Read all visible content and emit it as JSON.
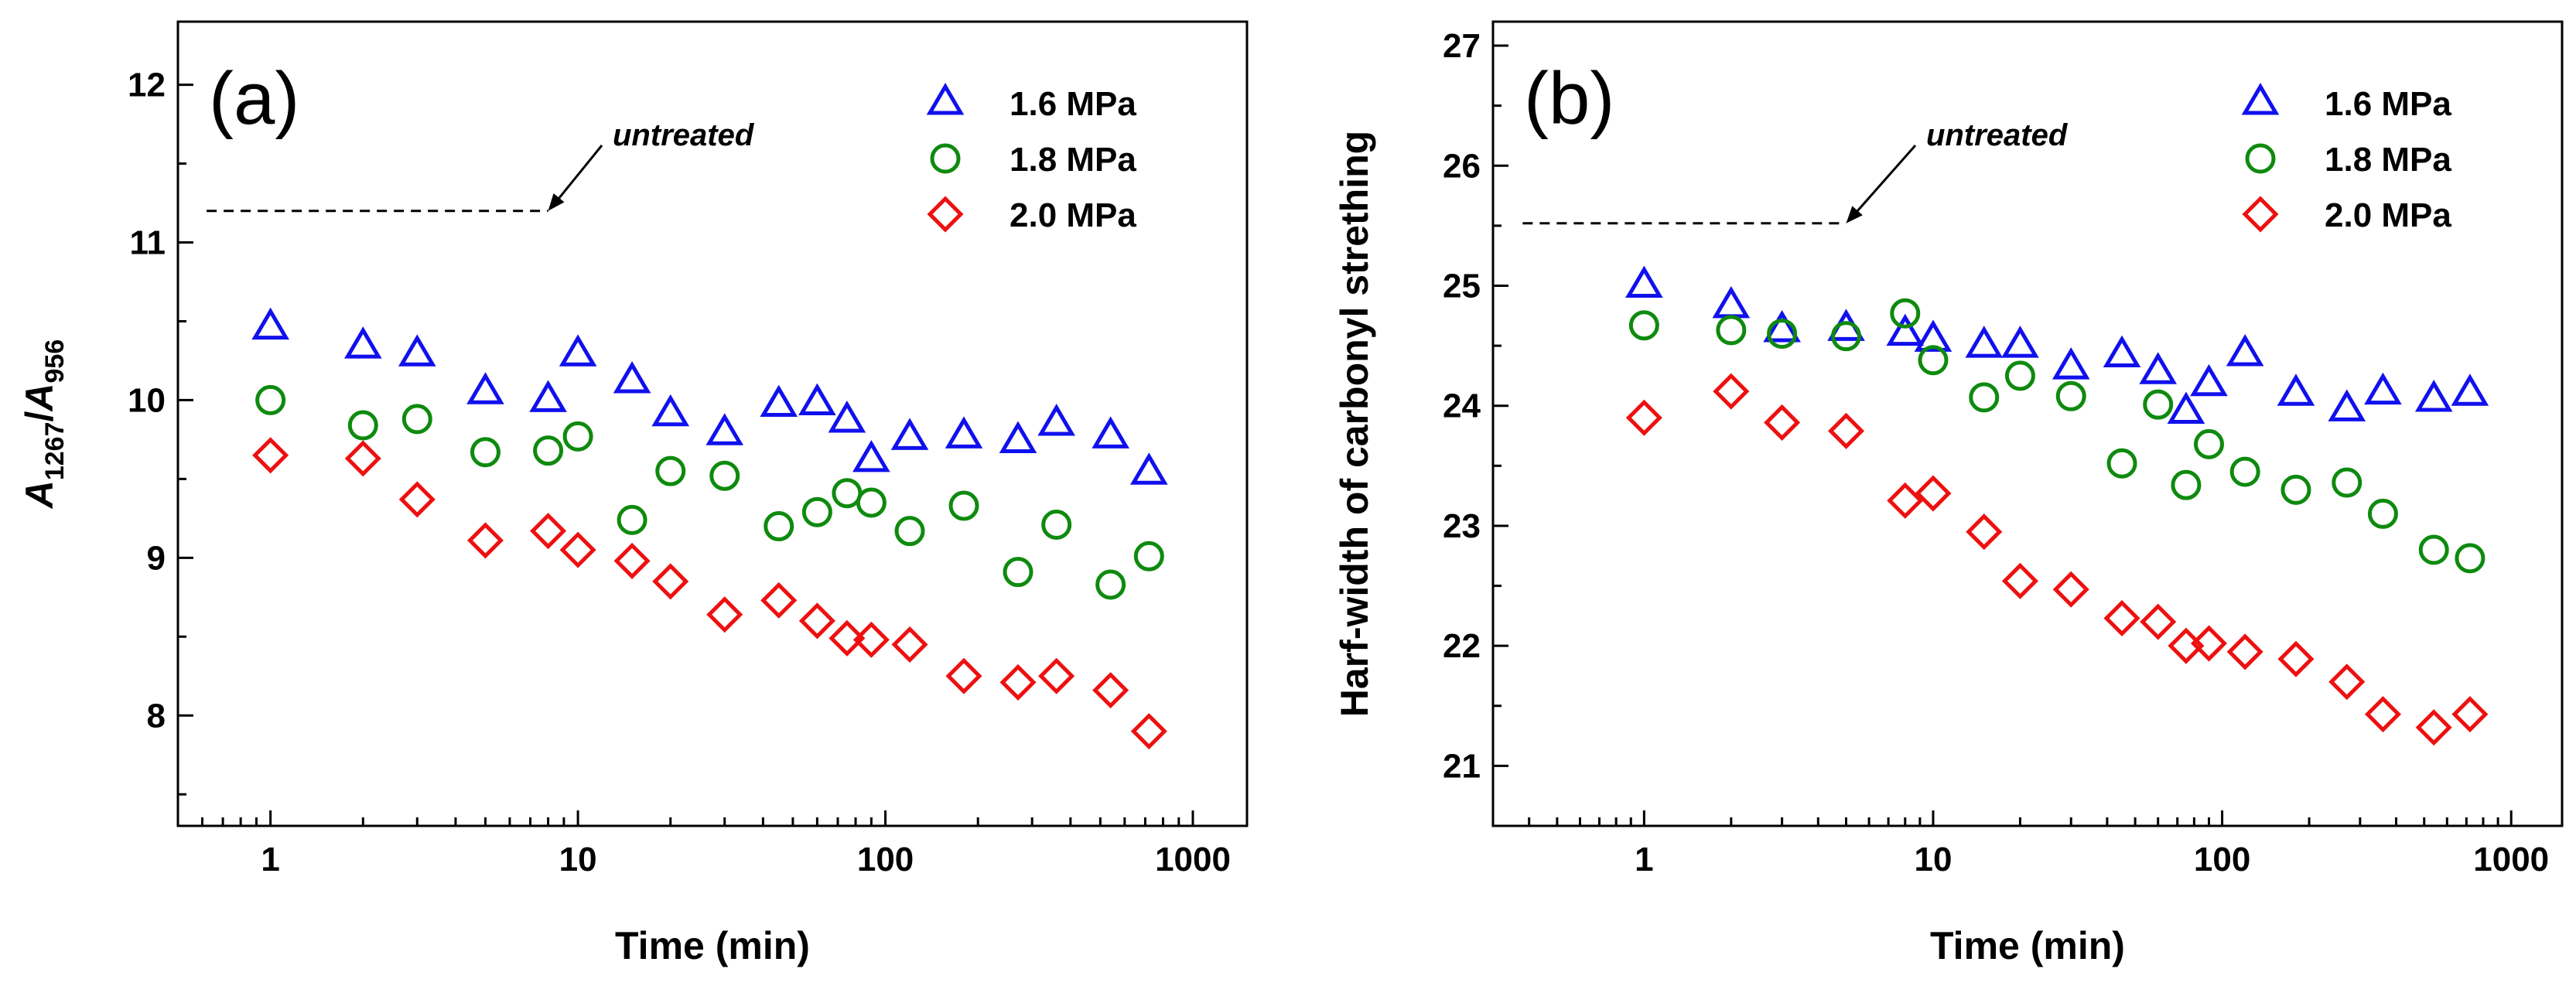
{
  "chart_data": [
    {
      "type": "scatter",
      "panel_label": "(a)",
      "xlabel": "Time (min)",
      "ylabel_main": "A",
      "ylabel_sub1": "1267",
      "ylabel_sep": "/",
      "ylabel_main2": "A",
      "ylabel_sub2": "956",
      "xscale": "log",
      "xlim": [
        0.5,
        1500
      ],
      "ylim": [
        7.3,
        12.4
      ],
      "xticks": [
        1,
        10,
        100,
        1000
      ],
      "xtick_labels": [
        "1",
        "10",
        "100",
        "1000"
      ],
      "yticks": [
        8,
        9,
        10,
        11,
        12
      ],
      "ytick_labels": [
        "8",
        "9",
        "10",
        "11",
        "12"
      ],
      "legend_position": "top-right",
      "annotation": {
        "text": "untreated",
        "y": 11.2,
        "x_start": 0.62,
        "x_end": 8
      },
      "series": [
        {
          "name": "1.6 MPa",
          "marker": "triangle",
          "color": "#1010ee",
          "x": [
            1,
            2,
            3,
            5,
            8,
            10,
            15,
            20,
            30,
            45,
            60,
            75,
            90,
            120,
            180,
            270,
            360,
            540,
            720
          ],
          "y": [
            10.46,
            10.34,
            10.29,
            10.05,
            10.0,
            10.29,
            10.12,
            9.91,
            9.79,
            9.97,
            9.98,
            9.87,
            9.62,
            9.76,
            9.77,
            9.74,
            9.85,
            9.77,
            9.54
          ]
        },
        {
          "name": "1.8 MPa",
          "marker": "circle",
          "color": "#0e8a0e",
          "x": [
            1,
            2,
            3,
            5,
            8,
            10,
            15,
            20,
            30,
            45,
            60,
            75,
            90,
            120,
            180,
            270,
            360,
            540,
            720
          ],
          "y": [
            10.0,
            9.84,
            9.88,
            9.67,
            9.68,
            9.77,
            9.24,
            9.55,
            9.52,
            9.2,
            9.29,
            9.41,
            9.35,
            9.17,
            9.33,
            8.91,
            9.21,
            8.83,
            9.01
          ]
        },
        {
          "name": "2.0 MPa",
          "marker": "diamond",
          "color": "#ee1010",
          "x": [
            1,
            2,
            3,
            5,
            8,
            10,
            15,
            20,
            30,
            45,
            60,
            75,
            90,
            120,
            180,
            270,
            360,
            540,
            720
          ],
          "y": [
            9.65,
            9.63,
            9.37,
            9.11,
            9.17,
            9.05,
            8.98,
            8.85,
            8.64,
            8.73,
            8.6,
            8.49,
            8.48,
            8.45,
            8.25,
            8.21,
            8.25,
            8.16,
            7.9
          ]
        }
      ]
    },
    {
      "type": "scatter",
      "panel_label": "(b)",
      "xlabel": "Time (min)",
      "ylabel": "Harf-width of carbonyl strething",
      "xscale": "log",
      "xlim": [
        0.3,
        1500
      ],
      "ylim": [
        20.5,
        27.2
      ],
      "xticks": [
        1,
        10,
        100,
        1000
      ],
      "xtick_labels": [
        "1",
        "10",
        "100",
        "1000"
      ],
      "yticks": [
        21,
        22,
        23,
        24,
        25,
        26,
        27
      ],
      "ytick_labels": [
        "21",
        "22",
        "23",
        "24",
        "25",
        "26",
        "27"
      ],
      "legend_position": "top-right",
      "annotation": {
        "text": "untreated",
        "y": 25.52,
        "x_start": 0.38,
        "x_end": 5
      },
      "series": [
        {
          "name": "1.6 MPa",
          "marker": "triangle",
          "color": "#1010ee",
          "x": [
            1,
            2,
            3,
            5,
            8,
            10,
            15,
            20,
            30,
            45,
            60,
            75,
            90,
            120,
            180,
            270,
            360,
            540,
            720
          ],
          "y": [
            25.0,
            24.83,
            24.63,
            24.64,
            24.6,
            24.55,
            24.5,
            24.5,
            24.32,
            24.42,
            24.28,
            23.95,
            24.18,
            24.43,
            24.1,
            23.97,
            24.11,
            24.05,
            24.1
          ]
        },
        {
          "name": "1.8 MPa",
          "marker": "circle",
          "color": "#0e8a0e",
          "x": [
            1,
            2,
            3,
            5,
            8,
            10,
            15,
            20,
            30,
            45,
            60,
            75,
            90,
            120,
            180,
            270,
            360,
            540,
            720
          ],
          "y": [
            24.67,
            24.63,
            24.6,
            24.58,
            24.77,
            24.38,
            24.07,
            24.25,
            24.08,
            23.52,
            24.01,
            23.34,
            23.68,
            23.45,
            23.3,
            23.36,
            23.1,
            22.8,
            22.73
          ]
        },
        {
          "name": "2.0 MPa",
          "marker": "diamond",
          "color": "#ee1010",
          "x": [
            1,
            2,
            3,
            5,
            8,
            10,
            15,
            20,
            30,
            45,
            60,
            75,
            90,
            120,
            180,
            270,
            360,
            540,
            720
          ],
          "y": [
            23.9,
            24.12,
            23.86,
            23.79,
            23.21,
            23.27,
            22.95,
            22.54,
            22.47,
            22.23,
            22.2,
            22.0,
            22.02,
            21.95,
            21.89,
            21.7,
            21.43,
            21.32,
            21.43
          ]
        }
      ]
    }
  ]
}
